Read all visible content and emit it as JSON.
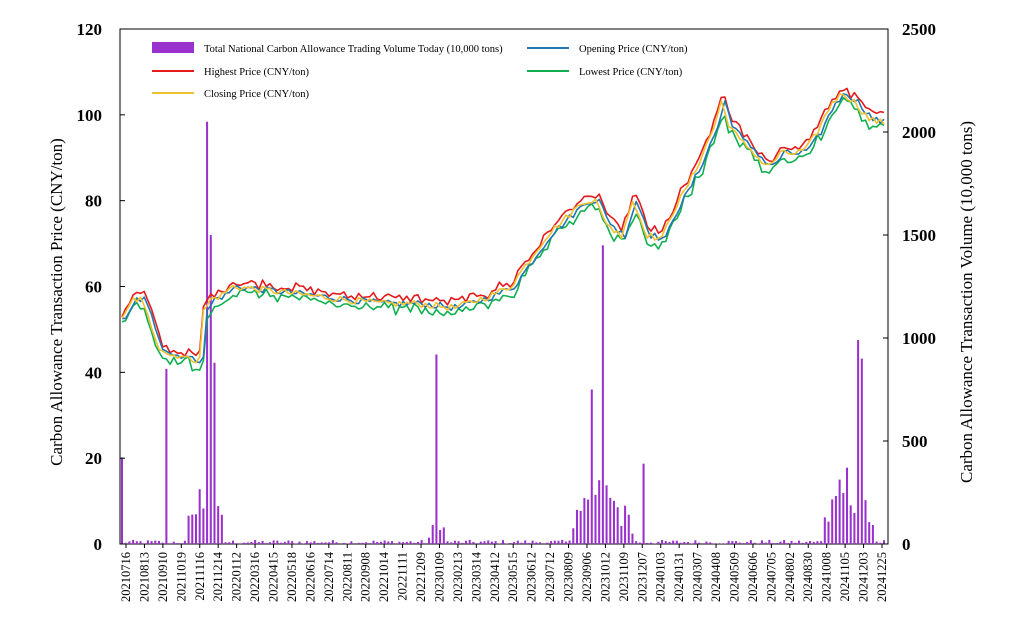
{
  "chart_data": {
    "type": "line+bar",
    "title": "",
    "ylabel_left": "Carbon Allowance Transaction Price (CNY/ton)",
    "ylabel_right": "Carbon Allowance Transaction Volume (10,000 tons)",
    "ylim_left": [
      0,
      120
    ],
    "ylim_right": [
      0,
      2500
    ],
    "yticks_left": [
      "0",
      "20",
      "40",
      "60",
      "80",
      "100",
      "120"
    ],
    "yticks_right": [
      "0",
      "500",
      "1000",
      "1500",
      "2000",
      "2500"
    ],
    "xticks": [
      "20210716",
      "20210813",
      "20210910",
      "20211019",
      "20211116",
      "20211214",
      "20220112",
      "20220316",
      "20220415",
      "20220518",
      "20220616",
      "20220714",
      "20220811",
      "20220908",
      "20221014",
      "20221111",
      "20221209",
      "20230109",
      "20230213",
      "20230314",
      "20230412",
      "20230515",
      "20230612",
      "20230712",
      "20230809",
      "20230906",
      "20231012",
      "20231109",
      "20231207",
      "20240103",
      "20240131",
      "20240307",
      "20240408",
      "20240509",
      "20240606",
      "20240705",
      "20240802",
      "20240830",
      "20241008",
      "20241105",
      "20241203",
      "20241225"
    ],
    "legend_position": "top",
    "series": [
      {
        "name": "Total National Carbon Allowance Trading Volume Today (10,000 tons)",
        "color": "#9932CC",
        "axis": "right",
        "type": "bar"
      },
      {
        "name": "Opening Price (CNY/ton)",
        "color": "#1F77B4",
        "axis": "left",
        "type": "line"
      },
      {
        "name": "Highest Price (CNY/ton)",
        "color": "#E41A1C",
        "axis": "left",
        "type": "line"
      },
      {
        "name": "Lowest Price (CNY/ton)",
        "color": "#10B050",
        "axis": "left",
        "type": "line"
      },
      {
        "name": "Closing Price (CNY/ton)",
        "color": "#F2C12E",
        "axis": "left",
        "type": "line"
      }
    ],
    "price_anchors": [
      [
        0,
        52
      ],
      [
        3,
        57
      ],
      [
        5,
        57
      ],
      [
        7,
        53
      ],
      [
        10,
        46
      ],
      [
        13,
        44
      ],
      [
        16,
        44
      ],
      [
        18,
        43
      ],
      [
        20,
        43
      ],
      [
        21,
        44
      ],
      [
        22,
        54
      ],
      [
        24,
        57
      ],
      [
        27,
        58
      ],
      [
        30,
        60
      ],
      [
        40,
        59
      ],
      [
        50,
        58
      ],
      [
        60,
        57
      ],
      [
        70,
        56
      ],
      [
        80,
        56
      ],
      [
        90,
        55
      ],
      [
        100,
        58
      ],
      [
        105,
        60
      ],
      [
        110,
        66
      ],
      [
        115,
        72
      ],
      [
        120,
        76
      ],
      [
        125,
        80
      ],
      [
        128,
        80
      ],
      [
        130,
        76
      ],
      [
        133,
        73
      ],
      [
        135,
        72
      ],
      [
        138,
        80
      ],
      [
        140,
        76
      ],
      [
        142,
        72
      ],
      [
        146,
        71
      ],
      [
        148,
        76
      ],
      [
        152,
        82
      ],
      [
        155,
        87
      ],
      [
        160,
        97
      ],
      [
        162,
        103
      ],
      [
        164,
        98
      ],
      [
        167,
        94
      ],
      [
        170,
        92
      ],
      [
        173,
        89
      ],
      [
        175,
        88
      ],
      [
        178,
        91
      ],
      [
        182,
        91
      ],
      [
        185,
        92
      ],
      [
        188,
        96
      ],
      [
        192,
        103
      ],
      [
        195,
        105
      ],
      [
        198,
        103
      ],
      [
        202,
        99
      ],
      [
        206,
        98
      ]
    ],
    "volume_profile": {
      "n_days": 207,
      "peaks": [
        {
          "day": 0,
          "value": 420
        },
        {
          "day": 12,
          "value": 850
        },
        {
          "day": 23,
          "value": 2050
        },
        {
          "day": 24,
          "value": 1500
        },
        {
          "day": 25,
          "value": 880
        },
        {
          "day": 85,
          "value": 920
        },
        {
          "day": 130,
          "value": 1450
        },
        {
          "day": 127,
          "value": 750
        },
        {
          "day": 141,
          "value": 390
        },
        {
          "day": 199,
          "value": 990
        },
        {
          "day": 200,
          "value": 900
        }
      ],
      "clusters": [
        {
          "start": 18,
          "end": 27,
          "level": 300
        },
        {
          "start": 83,
          "end": 87,
          "level": 180
        },
        {
          "start": 122,
          "end": 138,
          "level": 300
        },
        {
          "start": 190,
          "end": 203,
          "level": 350
        }
      ],
      "baseline": 20
    }
  }
}
